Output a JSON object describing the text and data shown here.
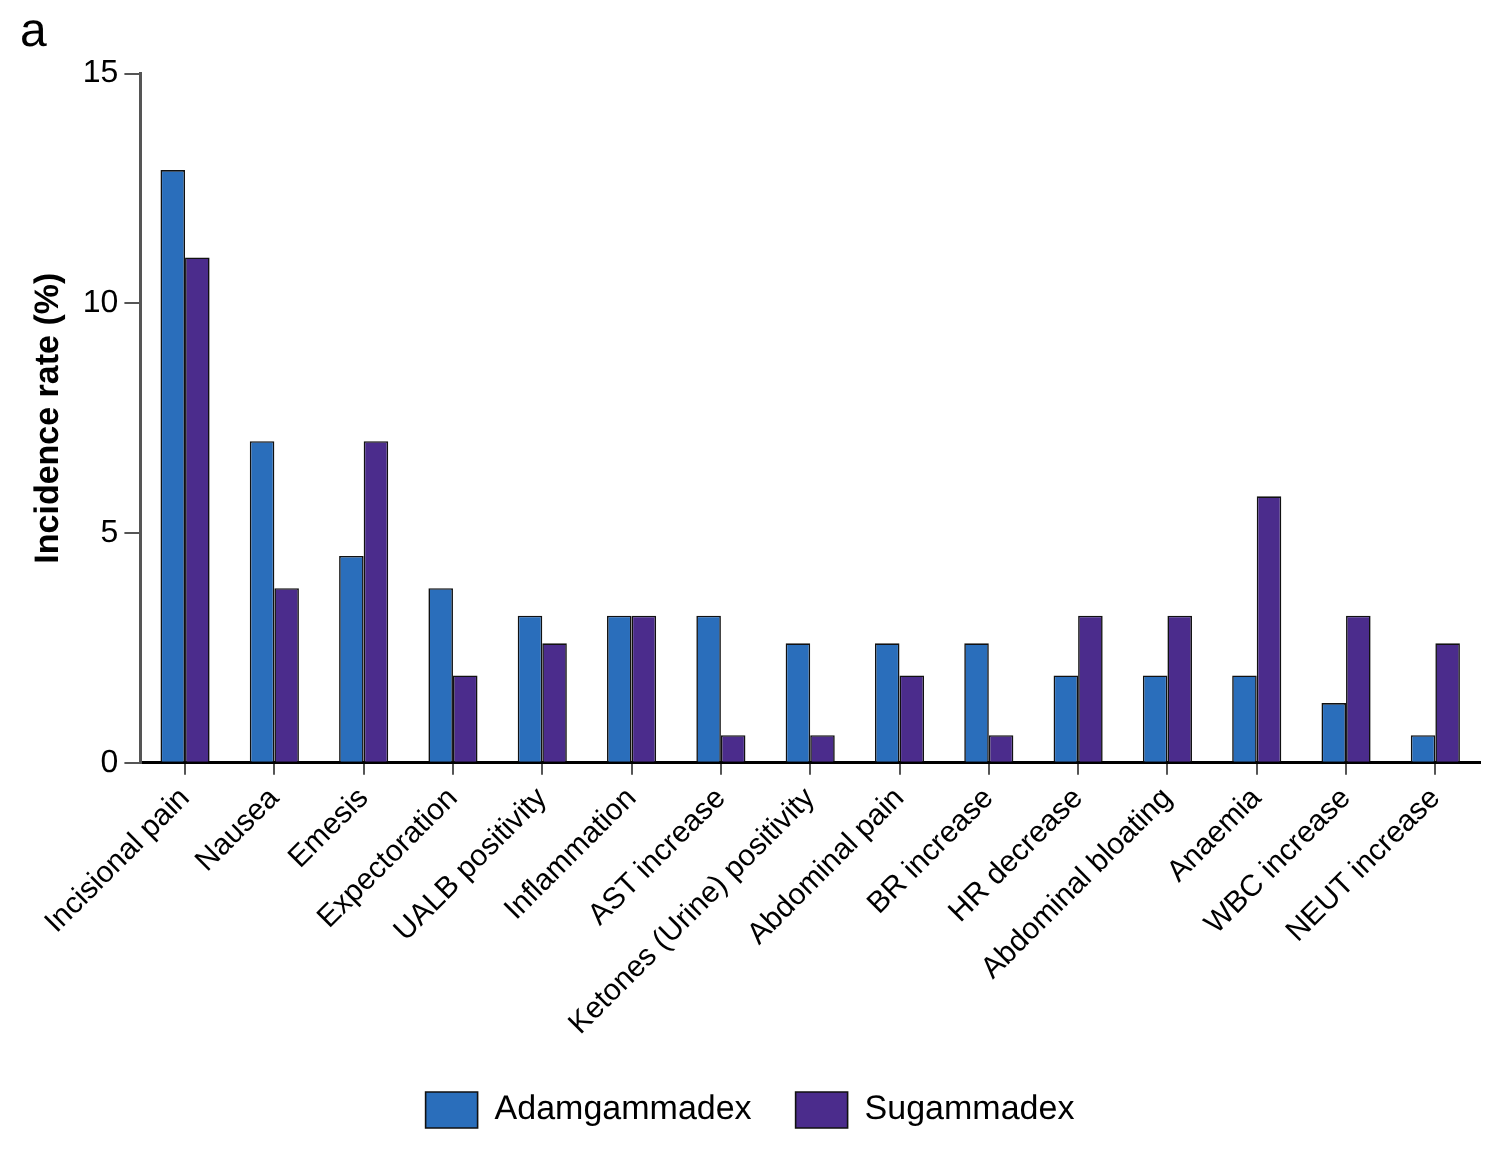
{
  "chart_data": {
    "type": "bar",
    "title": "a",
    "ylabel": "Incidence rate (%)",
    "categories": [
      "Incisional pain",
      "Nausea",
      "Emesis",
      "Expectoration",
      "UALB positivity",
      "Inflammation",
      "AST increase",
      "Ketones (Urine) positivity",
      "Abdominal pain",
      "BR increase",
      "HR decrease",
      "Abdominal bloating",
      "Anaemia",
      "WBC increase",
      "NEUT increase"
    ],
    "series": [
      {
        "name": "Adamgammadex",
        "color": "#2a6ebb",
        "values": [
          12.9,
          7.0,
          4.5,
          3.8,
          3.2,
          3.2,
          3.2,
          2.6,
          2.6,
          2.6,
          1.9,
          1.9,
          1.9,
          1.3,
          0.6
        ]
      },
      {
        "name": "Sugammadex",
        "color": "#4b2c8c",
        "values": [
          11.0,
          3.8,
          7.0,
          1.9,
          2.6,
          3.2,
          0.6,
          0.6,
          1.9,
          0.6,
          3.2,
          3.2,
          5.8,
          3.2,
          2.6
        ]
      }
    ],
    "ylim": [
      0,
      15
    ],
    "yticks": [
      0,
      5,
      10,
      15
    ],
    "grid": false,
    "legend": "bottom"
  }
}
